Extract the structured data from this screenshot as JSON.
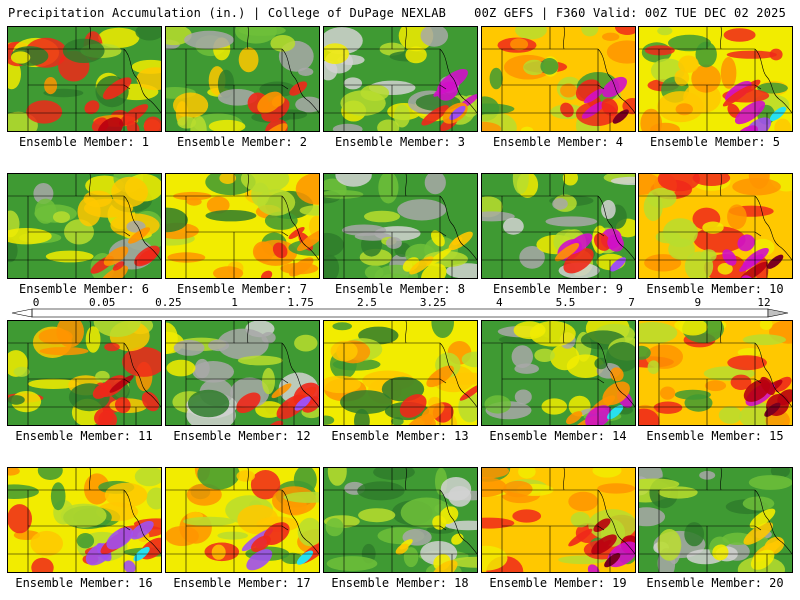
{
  "header": {
    "title": "Precipitation Accumulation (in.) | College of DuPage NEXLAB",
    "valid": "00Z GEFS | F360 Valid: 00Z TUE DEC 02 2025"
  },
  "legend": {
    "labels": [
      "0",
      "0.05",
      "0.25",
      "1",
      "1.75",
      "2.5",
      "3.25",
      "4",
      "5.5",
      "7",
      "9",
      "12"
    ],
    "colors": [
      "#ffffff",
      "#c8c8c8",
      "#a6a6a6",
      "#7e7e7e",
      "#2e7d32",
      "#3a9a35",
      "#4bb03e",
      "#8fd03a",
      "#e5f000",
      "#ffdd00",
      "#ffb300",
      "#ff8800",
      "#ff5a00",
      "#ff2000",
      "#e00000",
      "#b80000",
      "#940000",
      "#8b0064",
      "#c4009a",
      "#e010d0",
      "#b060f0",
      "#6f84ff",
      "#3fb6ff",
      "#18e8f0",
      "#49c8c8",
      "#7a9a9a",
      "#8a8a8a",
      "#a6a6a6",
      "#c0c0c0",
      "#dadada"
    ]
  },
  "panels": [
    {
      "label": "Ensemble Member: 1",
      "theme": "moist-east"
    },
    {
      "label": "Ensemble Member: 2",
      "theme": "green-mix"
    },
    {
      "label": "Ensemble Member: 3",
      "theme": "gray-southeast-magenta"
    },
    {
      "label": "Ensemble Member: 4",
      "theme": "wet-southeast"
    },
    {
      "label": "Ensemble Member: 5",
      "theme": "wet-cyan"
    },
    {
      "label": "Ensemble Member: 6",
      "theme": "green-mix"
    },
    {
      "label": "Ensemble Member: 7",
      "theme": "yellow-west"
    },
    {
      "label": "Ensemble Member: 8",
      "theme": "dry-gray"
    },
    {
      "label": "Ensemble Member: 9",
      "theme": "gray-southeast-magenta"
    },
    {
      "label": "Ensemble Member: 10",
      "theme": "wet-southeast"
    },
    {
      "label": "Ensemble Member: 11",
      "theme": "moist-east"
    },
    {
      "label": "Ensemble Member: 12",
      "theme": "gray-southeast-magenta"
    },
    {
      "label": "Ensemble Member: 13",
      "theme": "yellow-west"
    },
    {
      "label": "Ensemble Member: 14",
      "theme": "dry-cyan"
    },
    {
      "label": "Ensemble Member: 15",
      "theme": "wet-southeast"
    },
    {
      "label": "Ensemble Member: 16",
      "theme": "wet-cyan"
    },
    {
      "label": "Ensemble Member: 17",
      "theme": "wet-cyan"
    },
    {
      "label": "Ensemble Member: 18",
      "theme": "dry-gray"
    },
    {
      "label": "Ensemble Member: 19",
      "theme": "wet-southeast"
    },
    {
      "label": "Ensemble Member: 20",
      "theme": "dry-gray"
    }
  ]
}
